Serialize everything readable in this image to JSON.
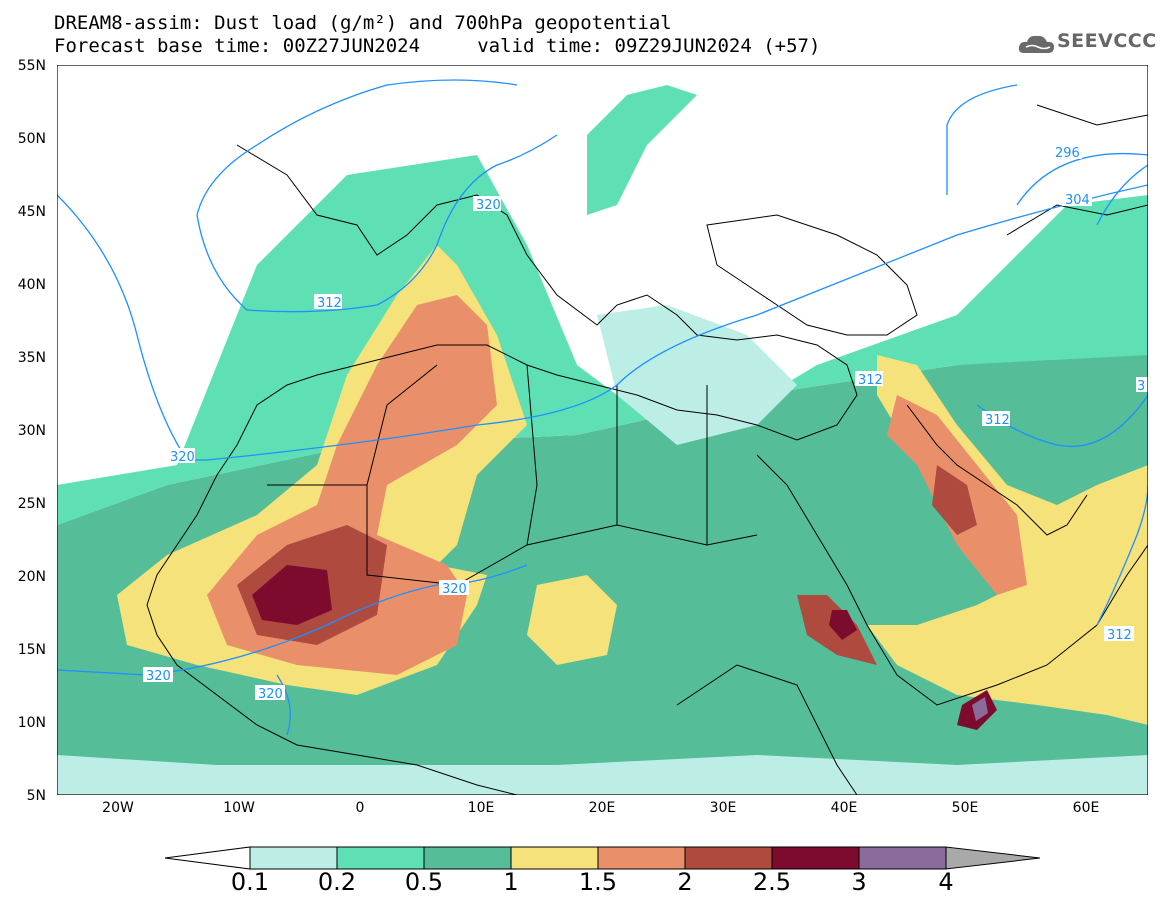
{
  "header": {
    "title_line1": "DREAM8-assim: Dust load (g/m²) and 700hPa geopotential",
    "title_line2": "Forecast base time: 00Z27JUN2024     valid time: 09Z29JUN2024 (+57)",
    "logo_text": "SEEVCCC"
  },
  "map": {
    "lon_labels": [
      "20W",
      "10W",
      "0",
      "10E",
      "20E",
      "30E",
      "40E",
      "50E",
      "60E"
    ],
    "lat_labels": [
      "55N",
      "50N",
      "45N",
      "40N",
      "35N",
      "30N",
      "25N",
      "20N",
      "15N",
      "10N",
      "5N"
    ],
    "contour_labels": [
      "320",
      "312",
      "320",
      "320",
      "320",
      "320",
      "312",
      "312",
      "296",
      "304",
      "312",
      "3"
    ]
  },
  "colorbar": {
    "labels": [
      "0.1",
      "0.2",
      "0.5",
      "1",
      "1.5",
      "2",
      "2.5",
      "3",
      "4"
    ],
    "colors": [
      "#ffffff",
      "#bdeee6",
      "#5ee0b4",
      "#55bd98",
      "#f5e27a",
      "#e9906a",
      "#ae4a3e",
      "#7c0b2e",
      "#8b6a9c",
      "#a9a9a9"
    ]
  }
}
